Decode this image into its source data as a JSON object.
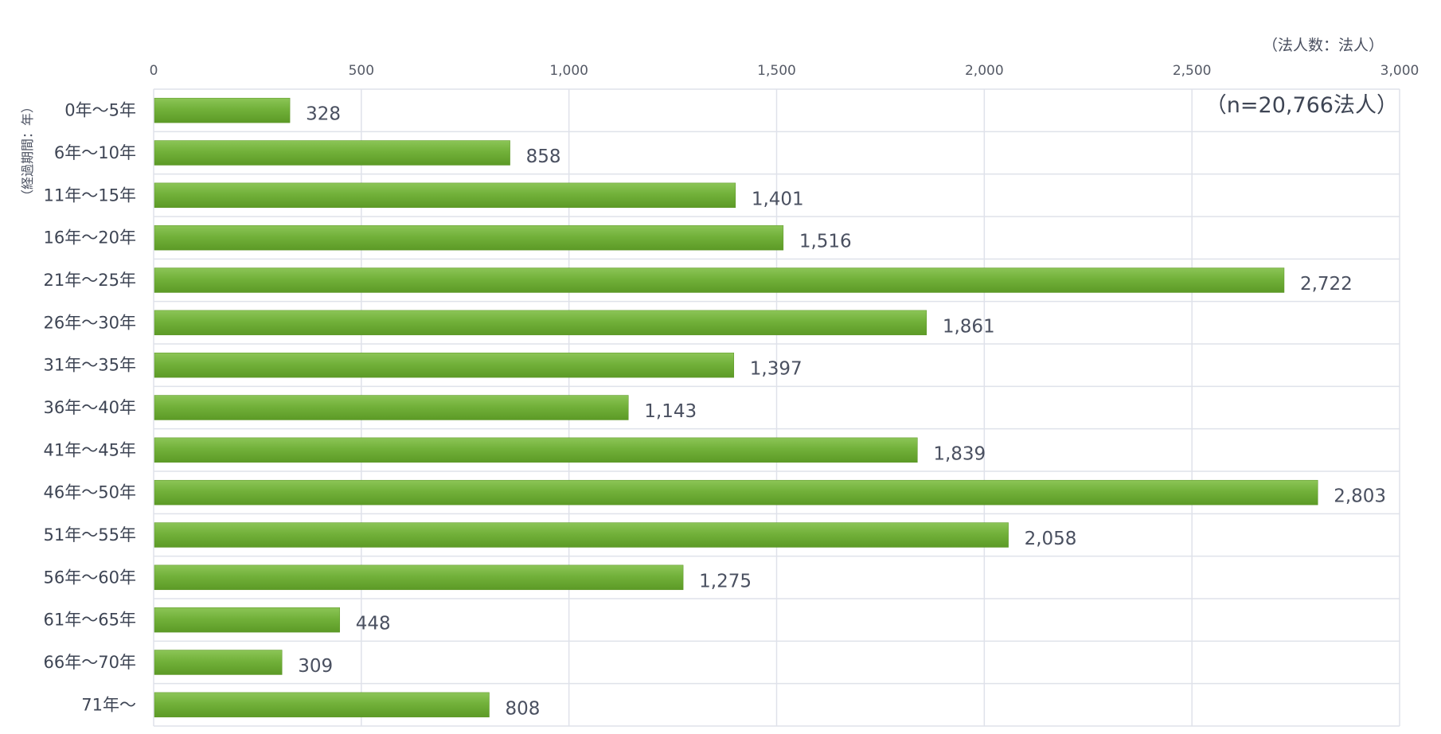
{
  "chart_data": {
    "type": "bar",
    "orientation": "horizontal",
    "categories": [
      "0年～5年",
      "6年～10年",
      "11年～15年",
      "16年～20年",
      "21年～25年",
      "26年～30年",
      "31年～35年",
      "36年～40年",
      "41年～45年",
      "46年～50年",
      "51年～55年",
      "56年～60年",
      "61年～65年",
      "66年～70年",
      "71年～"
    ],
    "values": [
      328,
      858,
      1401,
      1516,
      2722,
      1861,
      1397,
      1143,
      1839,
      2803,
      2058,
      1275,
      448,
      309,
      808
    ],
    "value_labels": [
      "328",
      "858",
      "1,401",
      "1,516",
      "2,722",
      "1,861",
      "1,397",
      "1,143",
      "1,839",
      "2,803",
      "2,058",
      "1,275",
      "448",
      "309",
      "808"
    ],
    "x_ticks": [
      0,
      500,
      1000,
      1500,
      2000,
      2500,
      3000
    ],
    "x_tick_labels": [
      "0",
      "500",
      "1,000",
      "1,500",
      "2,000",
      "2,500",
      "3,000"
    ],
    "xlim": [
      0,
      3000
    ],
    "xlabel": "（法人数：法人）",
    "ylabel": "（経過期間：年）",
    "annotation": "（n=20,766法人）",
    "grid": true,
    "x_axis_position": "top",
    "bar_color": "#6fae34"
  }
}
